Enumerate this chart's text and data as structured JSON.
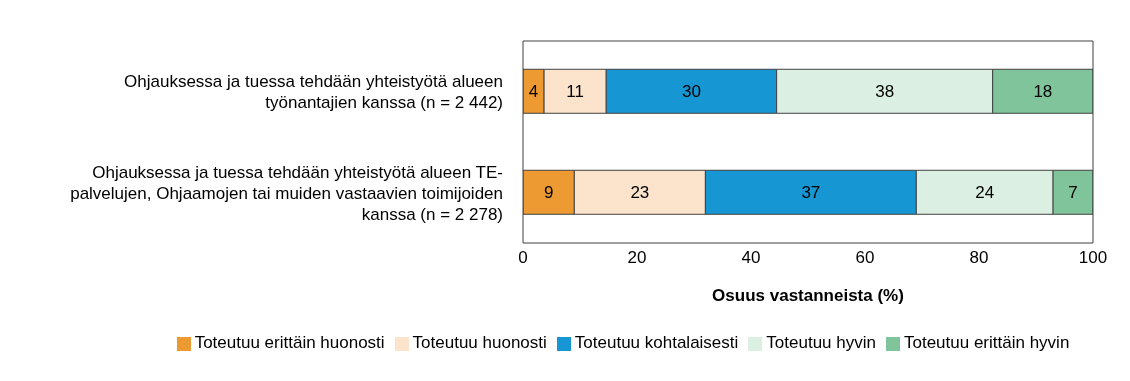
{
  "chart_data": {
    "type": "bar",
    "orientation": "horizontal",
    "stacked": true,
    "categories": [
      "Ohjauksessa ja tuessa tehdään yhteistyötä alueen työnantajien kanssa (n = 2 442)",
      "Ohjauksessa ja tuessa tehdään yhteistyötä alueen TE-palvelujen, Ohjaamojen tai muiden vastaavien toimijoiden kanssa (n = 2 278)"
    ],
    "series": [
      {
        "name": "Toteutuu erittäin huonosti",
        "color": "#ee9a33",
        "values": [
          3.7,
          9
        ],
        "value_labels": [
          "4",
          "9"
        ]
      },
      {
        "name": "Toteutuu huonosti",
        "color": "#fce4cc",
        "values": [
          10.9,
          23
        ],
        "value_labels": [
          "11",
          "23"
        ]
      },
      {
        "name": "Toteutuu kohtalaisesti",
        "color": "#1696d2",
        "values": [
          29.9,
          37
        ],
        "value_labels": [
          "30",
          "37"
        ]
      },
      {
        "name": "Toteutuu hyvin",
        "color": "#dcefe3",
        "values": [
          37.9,
          24
        ],
        "value_labels": [
          "38",
          "24"
        ]
      },
      {
        "name": "Toteutuu erittäin hyvin",
        "color": "#7fc49a",
        "values": [
          17.6,
          7
        ],
        "value_labels": [
          "18",
          "7"
        ]
      }
    ],
    "xlim": [
      0,
      100
    ],
    "xticks": [
      0,
      20,
      40,
      60,
      80,
      100
    ],
    "xlabel": "Osuus vastanneista (%)",
    "grid": false,
    "legend": "bottom"
  }
}
